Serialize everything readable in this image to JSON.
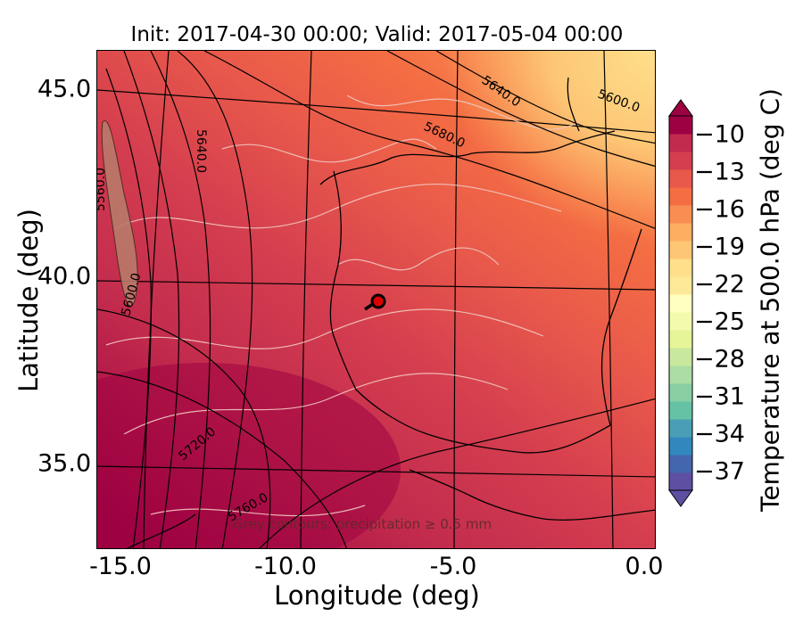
{
  "title": "Init: 2017-04-30 00:00; Valid: 2017-05-04 00:00",
  "axes": {
    "xlabel": "Longitude (deg)",
    "ylabel": "Latitude (deg)",
    "xticks": [
      "-15.0",
      "-10.0",
      "-5.0",
      "0.0"
    ],
    "yticks": [
      "45.0",
      "40.0",
      "35.0"
    ]
  },
  "colorbar": {
    "label": "Temperature at 500.0 hPa (deg C)",
    "ticks": [
      "−10",
      "−13",
      "−16",
      "−19",
      "−22",
      "−25",
      "−28",
      "−31",
      "−34",
      "−37"
    ],
    "min": -38.5,
    "max": -8.5,
    "colors": [
      "#5e4fa2",
      "#4366ae",
      "#3288bd",
      "#4a9fb6",
      "#66c2a5",
      "#88d0a4",
      "#abdda4",
      "#c8e89e",
      "#e6f598",
      "#f3faae",
      "#ffffbf",
      "#fee999",
      "#fee08b",
      "#fdc675",
      "#fdae61",
      "#f98e52",
      "#f46d43",
      "#e8584b",
      "#d53e4f",
      "#c22b4d",
      "#9e0142"
    ]
  },
  "contours": {
    "height_labels": [
      "5600.0",
      "5640.0",
      "5680.0",
      "5640.0",
      "5560.0",
      "5600.0",
      "5720.0",
      "5760.0"
    ]
  },
  "annotation": "Grey contours: precipitation ≥ 0.5 mm",
  "marker": {
    "lon": -7.5,
    "lat": 39.3
  }
}
